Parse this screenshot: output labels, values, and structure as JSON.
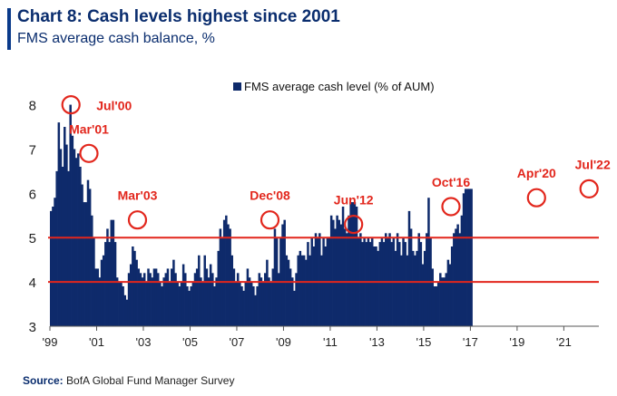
{
  "header": {
    "title": "Chart 8: Cash levels highest since 2001",
    "subtitle": "FMS average cash balance, %"
  },
  "source": {
    "label": "Source:",
    "text": "BofA Global Fund Manager Survey"
  },
  "colors": {
    "bar": "#0e2a6b",
    "reference_line": "#e2261c",
    "annotation": "#e2261c",
    "brand": "#0a2d6e"
  },
  "chart_data": {
    "type": "bar",
    "legend": "FMS average cash level (% of AUM)",
    "legend_position": "top-center",
    "ylim": [
      3,
      8.4
    ],
    "yticks": [
      3,
      4,
      5,
      6,
      7,
      8
    ],
    "xlim": [
      1999.0,
      2022.5
    ],
    "xticks": [
      {
        "value": 1999,
        "label": "'99"
      },
      {
        "value": 2001,
        "label": "'01"
      },
      {
        "value": 2003,
        "label": "'03"
      },
      {
        "value": 2005,
        "label": "'05"
      },
      {
        "value": 2007,
        "label": "'07"
      },
      {
        "value": 2009,
        "label": "'09"
      },
      {
        "value": 2011,
        "label": "'11"
      },
      {
        "value": 2013,
        "label": "'13"
      },
      {
        "value": 2015,
        "label": "'15"
      },
      {
        "value": 2017,
        "label": "'17"
      },
      {
        "value": 2019,
        "label": "'19"
      },
      {
        "value": 2021,
        "label": "'21"
      }
    ],
    "reference_lines": [
      5.0,
      4.0
    ],
    "start": 1999.0,
    "step": 0.08333,
    "values": [
      5.6,
      5.7,
      5.9,
      6.5,
      7.6,
      7.0,
      6.6,
      7.5,
      7.1,
      6.5,
      8.0,
      7.3,
      7.0,
      6.8,
      6.9,
      6.6,
      6.2,
      5.8,
      5.8,
      6.3,
      6.1,
      5.5,
      5.0,
      4.3,
      4.3,
      4.1,
      4.5,
      4.6,
      4.9,
      5.2,
      4.9,
      5.4,
      5.4,
      4.9,
      4.1,
      4.0,
      4.0,
      3.9,
      3.7,
      3.6,
      4.2,
      4.4,
      4.8,
      4.7,
      4.5,
      4.3,
      4.2,
      4.1,
      4.2,
      4.0,
      4.3,
      4.2,
      4.1,
      4.3,
      4.3,
      4.2,
      4.0,
      3.9,
      4.1,
      4.2,
      4.3,
      4.0,
      4.3,
      4.5,
      4.2,
      4.0,
      3.9,
      4.0,
      4.4,
      4.2,
      3.9,
      3.8,
      3.9,
      4.0,
      4.2,
      4.3,
      4.6,
      4.1,
      4.0,
      4.6,
      4.3,
      4.1,
      4.4,
      4.2,
      3.9,
      4.1,
      4.7,
      5.2,
      5.0,
      5.4,
      5.5,
      5.3,
      5.2,
      4.6,
      4.3,
      4.0,
      4.2,
      4.0,
      3.9,
      3.8,
      4.0,
      4.3,
      4.1,
      4.0,
      3.9,
      3.7,
      3.9,
      4.2,
      4.1,
      4.0,
      4.2,
      4.5,
      4.1,
      4.0,
      4.3,
      5.2,
      5.0,
      4.2,
      5.0,
      5.3,
      5.4,
      4.6,
      4.5,
      4.3,
      4.1,
      3.8,
      4.2,
      4.6,
      4.7,
      4.6,
      4.6,
      4.5,
      4.9,
      4.6,
      5.0,
      4.8,
      5.1,
      5.0,
      5.1,
      4.6,
      5.0,
      4.8,
      5.0,
      5.0,
      5.5,
      5.4,
      5.2,
      5.5,
      5.4,
      5.3,
      5.7,
      5.2,
      5.1,
      5.5,
      5.8,
      5.8,
      5.8,
      5.7,
      5.0,
      5.1,
      4.9,
      5.0,
      4.9,
      5.0,
      4.9,
      5.0,
      4.8,
      4.8,
      4.7,
      4.9,
      5.0,
      4.9,
      5.1,
      5.0,
      5.1,
      4.9,
      5.0,
      4.7,
      5.1,
      4.9,
      4.6,
      5.0,
      4.9,
      4.6,
      5.6,
      5.2,
      4.7,
      4.6,
      4.7,
      5.1,
      4.9,
      4.4,
      4.7,
      5.1,
      5.9,
      5.0,
      4.3,
      3.9,
      3.9,
      4.0,
      4.2,
      4.1,
      4.1,
      4.2,
      4.5,
      4.4,
      4.8,
      5.1,
      5.2,
      5.3,
      5.1,
      5.5,
      6.0,
      6.1,
      6.1,
      6.1,
      6.1
    ],
    "annotations": [
      {
        "label": "Jul'00",
        "x": 1999.9,
        "y": 8.0
      },
      {
        "label": "Mar'01",
        "x": 2000.67,
        "y": 6.9
      },
      {
        "label": "Mar'03",
        "x": 2002.75,
        "y": 5.4
      },
      {
        "label": "Dec'08",
        "x": 2008.42,
        "y": 5.4
      },
      {
        "label": "Jun'12",
        "x": 2012.0,
        "y": 5.3
      },
      {
        "label": "Oct'16",
        "x": 2016.17,
        "y": 5.7
      },
      {
        "label": "Apr'20",
        "x": 2019.83,
        "y": 5.9
      },
      {
        "label": "Jul'22",
        "x": 2022.08,
        "y": 6.1
      }
    ]
  }
}
